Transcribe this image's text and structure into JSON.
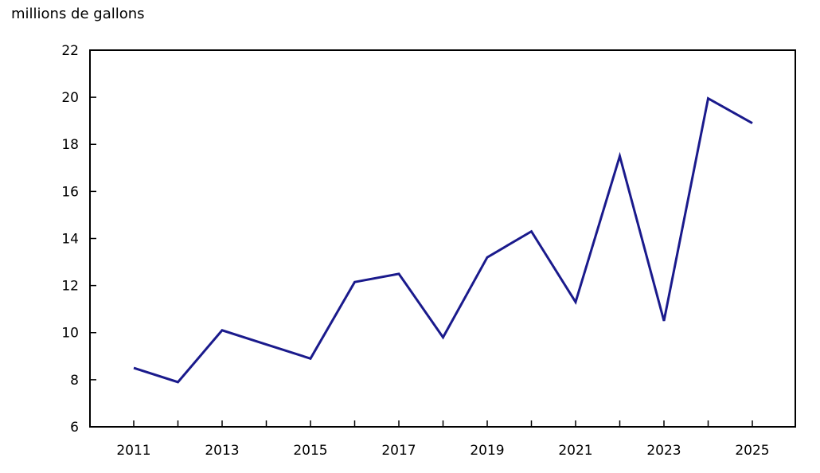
{
  "page": {
    "background": "#ffffff"
  },
  "chart_data": {
    "type": "line",
    "title": "millions de gallons",
    "xlabel": "",
    "ylabel": "millions de gallons",
    "x": [
      2011,
      2012,
      2013,
      2014,
      2015,
      2016,
      2017,
      2018,
      2019,
      2020,
      2021,
      2022,
      2023,
      2024,
      2025
    ],
    "series": [
      {
        "name": "millions de gallons",
        "color": "#1a1a8c",
        "values": [
          8.5,
          7.9,
          10.1,
          9.5,
          8.9,
          12.15,
          12.5,
          9.8,
          13.2,
          14.3,
          11.3,
          17.5,
          10.5,
          19.95,
          18.9
        ]
      }
    ],
    "ylim": [
      6,
      22
    ],
    "yticks": [
      6,
      8,
      10,
      12,
      14,
      16,
      18,
      20,
      22
    ],
    "xticks_labeled": [
      2011,
      2013,
      2015,
      2017,
      2019,
      2021,
      2023,
      2025
    ],
    "grid": false,
    "legend": "none",
    "axis_color": "#000000",
    "text_color": "#000000"
  }
}
